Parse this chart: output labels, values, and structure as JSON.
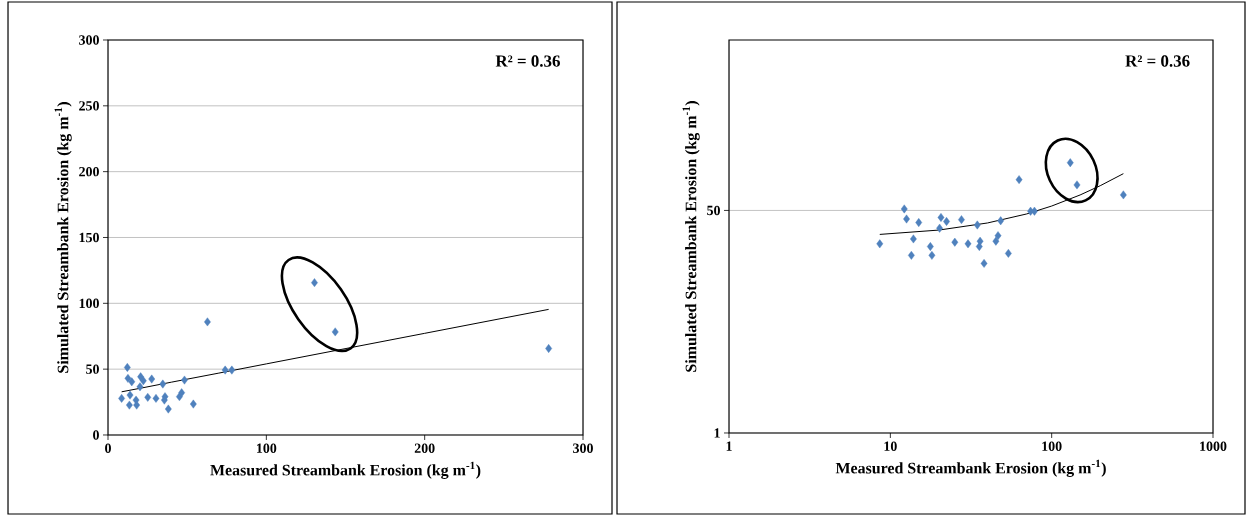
{
  "chart_data": [
    {
      "type": "scatter",
      "xlabel": "Measured Streambank Erosion (kg m$^{-1}$)",
      "ylabel": "Simulated Streambank Erosion (kg m$^{-1}$)",
      "annotations": [
        "R² = 0.36"
      ],
      "xlim": [
        0,
        300
      ],
      "ylim": [
        0,
        300
      ],
      "xticks": [
        0,
        100,
        200,
        300
      ],
      "yticks": [
        0,
        50,
        100,
        150,
        200,
        250,
        300
      ],
      "grid": "y",
      "series": [
        {
          "marker": "diamond",
          "color": "#4f81bd",
          "x": [
            12.2,
            12.6,
            15,
            20.6,
            22.3,
            27.6,
            34.6,
            48.3,
            20.2,
            8.6,
            13.9,
            13.5,
            17.7,
            18.1,
            25.1,
            30.3,
            36,
            35.6,
            38.1,
            45.1,
            46.5,
            53.9,
            62.8,
            74,
            78.2,
            130.4,
            143.5,
            278.3
          ],
          "values": [
            51.3,
            43,
            40.4,
            44.2,
            41.2,
            42.5,
            38.7,
            41.7,
            36.6,
            27.8,
            30.3,
            22.7,
            26.5,
            22.7,
            28.6,
            27.8,
            29.1,
            26.5,
            19.7,
            29.1,
            32.1,
            23.5,
            85.9,
            49.3,
            49.3,
            115.7,
            78.3,
            65.7
          ]
        },
        {
          "type": "line",
          "color": "#000000",
          "x": [
            8.6,
            20,
            40,
            70,
            100,
            150,
            200,
            278.3
          ],
          "values": [
            32.8,
            35.4,
            40.1,
            47.0,
            54.0,
            65.6,
            77.2,
            95.4
          ]
        }
      ]
    },
    {
      "type": "scatter",
      "xlabel": "Measured Streambank Erosion (kg m$^{-1}$)",
      "ylabel": "Simulated Streambank Erosion (kg m$^{-1}$)",
      "annotations": [
        "R² = 0.36"
      ],
      "log": "xy",
      "xlim": [
        1,
        1000
      ],
      "ylim": [
        1,
        1000
      ],
      "xticks": [
        1,
        10,
        100,
        1000
      ],
      "yticks": [
        1,
        50
      ],
      "grid": "y",
      "series": [
        {
          "marker": "diamond",
          "color": "#4f81bd",
          "x": [
            12.2,
            12.6,
            15,
            20.6,
            22.3,
            27.6,
            34.6,
            48.3,
            20.2,
            8.6,
            13.9,
            13.5,
            17.7,
            18.1,
            25.1,
            30.3,
            36,
            35.6,
            38.1,
            45.1,
            46.5,
            53.9,
            62.8,
            74,
            78.2,
            130.4,
            143.5,
            278.3
          ],
          "values": [
            51.3,
            43,
            40.4,
            44.2,
            41.2,
            42.5,
            38.7,
            41.7,
            36.6,
            27.8,
            30.3,
            22.7,
            26.5,
            22.7,
            28.6,
            27.8,
            29.1,
            26.5,
            19.7,
            29.1,
            32.1,
            23.5,
            85.9,
            49.3,
            49.3,
            115.7,
            78.3,
            65.7
          ]
        },
        {
          "type": "line",
          "color": "#000000",
          "x": [
            8.6,
            20,
            40,
            70,
            100,
            150,
            200,
            278.3
          ],
          "values": [
            32.8,
            35.4,
            40.1,
            47.0,
            54.0,
            65.6,
            77.2,
            95.4
          ]
        }
      ]
    }
  ]
}
